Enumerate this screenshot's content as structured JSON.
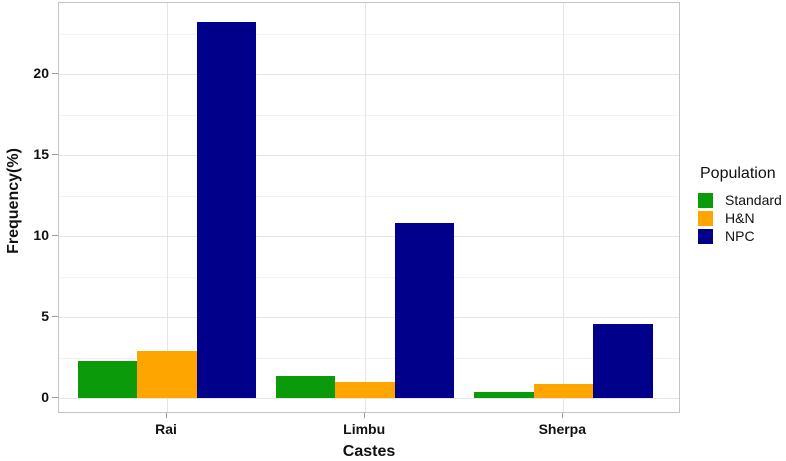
{
  "figure": {
    "background": "#ffffff",
    "panel_border_color": "#c4c4c4",
    "grid_major_color": "#e5e5e5",
    "grid_minor_color": "#f2f2f2",
    "tick_color": "#9a9a9a",
    "text_color": "#111111"
  },
  "chart_data": {
    "type": "bar",
    "title": "",
    "xlabel": "Castes",
    "ylabel": "Frequency(%)",
    "categories": [
      "Rai",
      "Limbu",
      "Sherpa"
    ],
    "series": [
      {
        "name": "Standard",
        "color": "#0a9a0a",
        "values": [
          2.3,
          1.4,
          0.4
        ]
      },
      {
        "name": "H&N",
        "color": "#ffa500",
        "values": [
          2.9,
          1.0,
          0.9
        ]
      },
      {
        "name": "NPC",
        "color": "#00008b",
        "values": [
          23.2,
          10.8,
          4.6
        ]
      }
    ],
    "y_ticks": [
      0,
      5,
      10,
      15,
      20
    ],
    "y_minor_ticks": [
      2.5,
      7.5,
      12.5,
      17.5,
      22.5
    ],
    "ylim": [
      0,
      24.4
    ],
    "grid": true,
    "legend": {
      "title": "Population",
      "position": "right"
    }
  }
}
